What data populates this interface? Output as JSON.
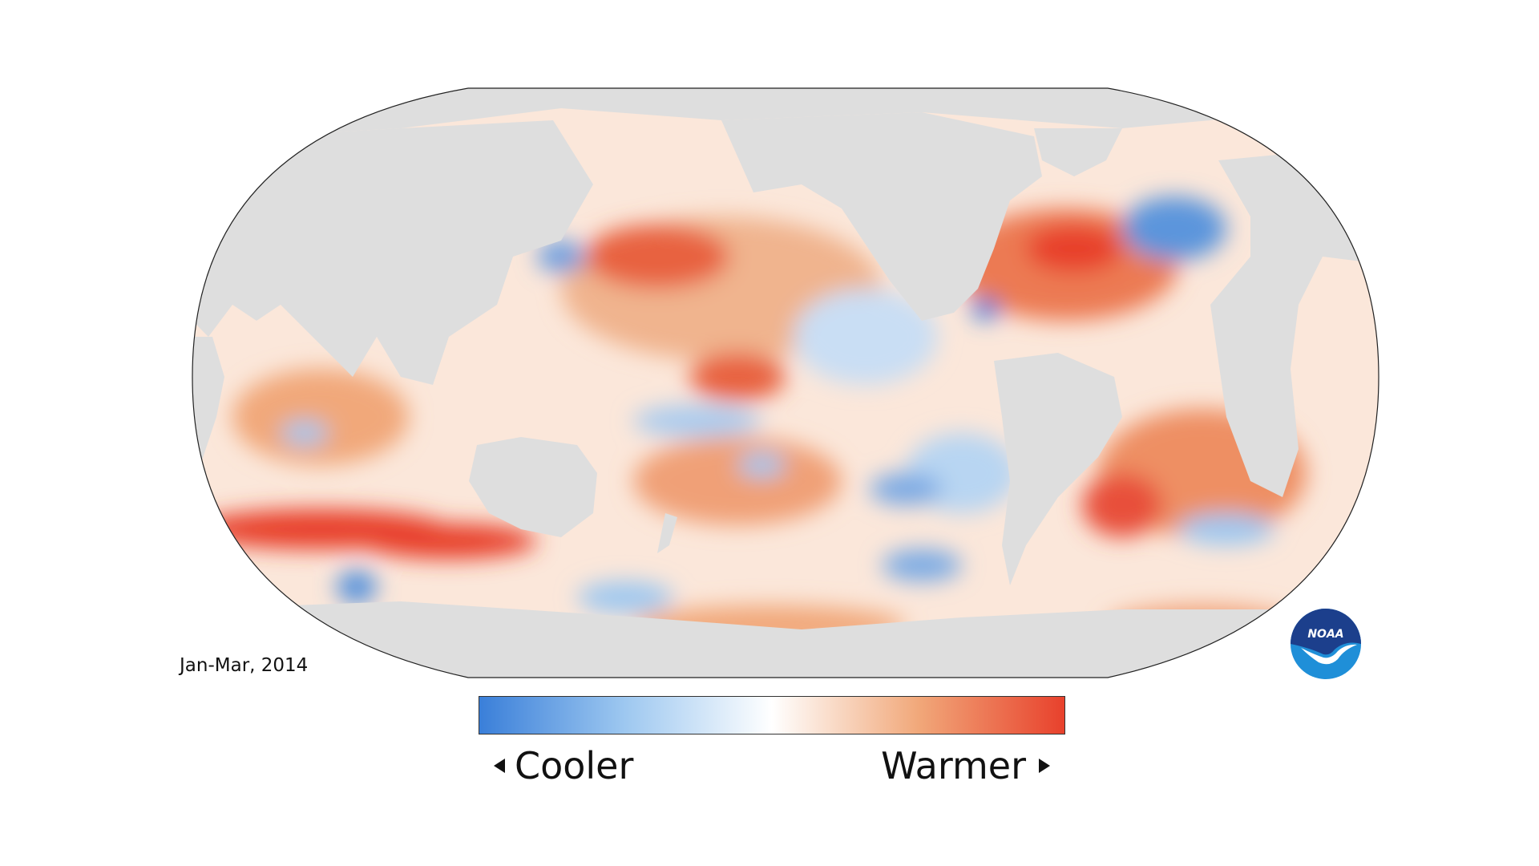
{
  "map": {
    "date_label": "Jan-Mar, 2014",
    "colors": {
      "land": "#dedede",
      "ocean_neutral": "#ffffff",
      "outline": "#222222",
      "cool_strong": "#3a7fd9",
      "cool_mid": "#9ec8f0",
      "warm_mid": "#f1a87a",
      "warm_strong": "#e8412c"
    },
    "anomaly_patches": [
      {
        "region": "south-indian-ocean-band",
        "sign": "warm",
        "strength": 1.0
      },
      {
        "region": "north-atlantic",
        "sign": "warm",
        "strength": 1.0
      },
      {
        "region": "north-atlantic-subpolar",
        "sign": "cool",
        "strength": 0.8
      },
      {
        "region": "gulf-of-mexico",
        "sign": "cool",
        "strength": 1.0
      },
      {
        "region": "north-pacific",
        "sign": "warm",
        "strength": 0.6
      },
      {
        "region": "eastern-tropical-pacific",
        "sign": "cool",
        "strength": 0.6
      },
      {
        "region": "south-pacific",
        "sign": "warm",
        "strength": 0.8
      },
      {
        "region": "south-atlantic",
        "sign": "warm",
        "strength": 0.8
      }
    ]
  },
  "legend": {
    "cool_label": "Cooler",
    "warm_label": "Warmer",
    "gradient": [
      "#3a7fd9",
      "#9ec8f0",
      "#ffffff",
      "#f1a87a",
      "#e8412c"
    ]
  },
  "logo": {
    "text": "NOAA",
    "colors": {
      "top": "#1c3f8c",
      "bottom": "#1f8fd8",
      "bird": "#ffffff"
    }
  }
}
